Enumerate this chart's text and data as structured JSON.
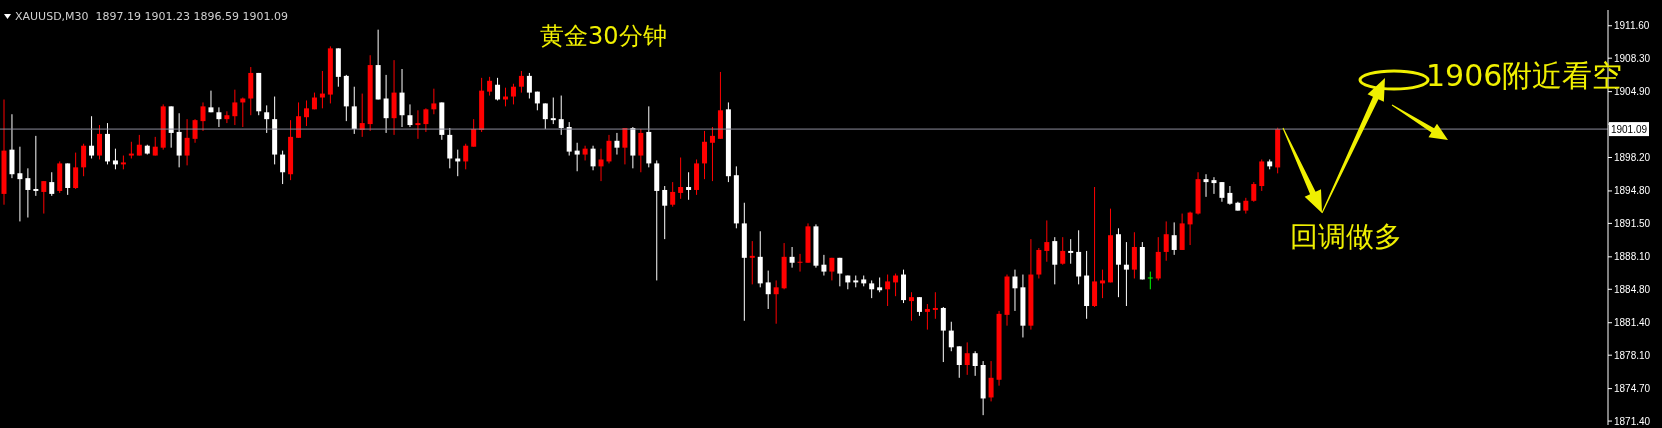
{
  "chart_data": {
    "type": "candlestick",
    "title": "黄金30分钟",
    "subtitle": "XAUUSD,M30  1897.19 1901.23 1896.59 1901.09",
    "annotations": [
      "1906附近看空",
      "回调做多"
    ],
    "categories": [
      null,
      null,
      null,
      null,
      null,
      null,
      null,
      null,
      null,
      null,
      null,
      null,
      null,
      null,
      null,
      null,
      null,
      null,
      null,
      null,
      null,
      null,
      null,
      null,
      null,
      null,
      null,
      null,
      null,
      null,
      null,
      null,
      null,
      null,
      null,
      null,
      null,
      null,
      null,
      null,
      null,
      null,
      null,
      null,
      null,
      null,
      null,
      null,
      null,
      null,
      null,
      null,
      null,
      null,
      null,
      null,
      null,
      null,
      null,
      null,
      null,
      null,
      null,
      null,
      null,
      null,
      null,
      null,
      null,
      null,
      null,
      null,
      null,
      null,
      null,
      null,
      null,
      null,
      null,
      null,
      null,
      null,
      null,
      null,
      null,
      null,
      null,
      null,
      null,
      null,
      null,
      null,
      null,
      null,
      null,
      null,
      null,
      null,
      null,
      null,
      null,
      null,
      null,
      null,
      null,
      null,
      null,
      null,
      null,
      null,
      null,
      null,
      null,
      null,
      null,
      null,
      null,
      null,
      null,
      null,
      null,
      null,
      null,
      null,
      null,
      null,
      null,
      null,
      null,
      null,
      null,
      null,
      null,
      null,
      null,
      null,
      null,
      null,
      null,
      null,
      null,
      null,
      null,
      null,
      null,
      null,
      null,
      null,
      null,
      null,
      null,
      null,
      null,
      null,
      null,
      null,
      null,
      null,
      null,
      null,
      null,
      null,
      null,
      null,
      null,
      null,
      null,
      null,
      null,
      null,
      null,
      null,
      null,
      null,
      null,
      null,
      null,
      null,
      null,
      null,
      null,
      null,
      null,
      null,
      null,
      null,
      null,
      null,
      null,
      null,
      null,
      null,
      null,
      null,
      null,
      null,
      null,
      null,
      null,
      null,
      null,
      null
    ],
    "ohlc": [
      [
        1894.5,
        1904.1,
        1893.4,
        1898.9
      ],
      [
        1899.0,
        1902.6,
        1896.1,
        1896.5
      ],
      [
        1896.6,
        1899.3,
        1891.7,
        1896.0
      ],
      [
        1896.1,
        1897.1,
        1892.1,
        1894.9
      ],
      [
        1895.0,
        1900.4,
        1894.3,
        1894.8
      ],
      [
        1894.7,
        1895.8,
        1892.5,
        1895.8
      ],
      [
        1895.7,
        1896.7,
        1894.3,
        1894.5
      ],
      [
        1894.8,
        1897.8,
        1894.6,
        1897.6
      ],
      [
        1897.6,
        1897.6,
        1894.4,
        1895.1
      ],
      [
        1895.1,
        1898.7,
        1895.0,
        1897.2
      ],
      [
        1897.2,
        1899.6,
        1896.3,
        1899.4
      ],
      [
        1899.4,
        1902.4,
        1898.1,
        1898.4
      ],
      [
        1898.4,
        1901.5,
        1898.0,
        1900.6
      ],
      [
        1900.6,
        1901.7,
        1897.5,
        1897.8
      ],
      [
        1897.9,
        1899.1,
        1897.0,
        1897.5
      ],
      [
        1897.5,
        1898.4,
        1897.0,
        1897.7
      ],
      [
        1898.4,
        1899.8,
        1898.1,
        1898.6
      ],
      [
        1898.4,
        1900.5,
        1898.4,
        1899.5
      ],
      [
        1899.4,
        1899.5,
        1898.5,
        1898.6
      ],
      [
        1898.4,
        1900.3,
        1898.4,
        1899.3
      ],
      [
        1899.2,
        1903.6,
        1899.0,
        1903.4
      ],
      [
        1903.4,
        1903.4,
        1899.2,
        1900.7
      ],
      [
        1900.8,
        1902.7,
        1897.2,
        1898.4
      ],
      [
        1898.4,
        1902.1,
        1897.4,
        1900.2
      ],
      [
        1900.1,
        1902.1,
        1899.7,
        1902.0
      ],
      [
        1901.9,
        1903.8,
        1900.9,
        1903.4
      ],
      [
        1903.3,
        1905.0,
        1902.8,
        1902.8
      ],
      [
        1902.8,
        1903.3,
        1901.3,
        1902.1
      ],
      [
        1902.1,
        1902.9,
        1901.7,
        1902.5
      ],
      [
        1902.4,
        1905.1,
        1901.5,
        1903.8
      ],
      [
        1903.8,
        1904.3,
        1901.3,
        1904.2
      ],
      [
        1904.2,
        1907.4,
        1902.5,
        1906.8
      ],
      [
        1906.8,
        1906.8,
        1902.5,
        1902.9
      ],
      [
        1902.8,
        1903.5,
        1900.7,
        1902.1
      ],
      [
        1902.1,
        1904.4,
        1897.5,
        1898.5
      ],
      [
        1898.5,
        1898.9,
        1895.5,
        1896.7
      ],
      [
        1896.5,
        1902.0,
        1895.9,
        1900.3
      ],
      [
        1900.2,
        1903.8,
        1900.2,
        1902.4
      ],
      [
        1902.3,
        1904.0,
        1901.4,
        1903.2
      ],
      [
        1903.1,
        1904.8,
        1903.1,
        1904.3
      ],
      [
        1904.3,
        1907.0,
        1903.2,
        1904.7
      ],
      [
        1904.6,
        1909.5,
        1903.7,
        1909.3
      ],
      [
        1909.3,
        1909.3,
        1905.4,
        1906.4
      ],
      [
        1906.5,
        1906.6,
        1901.9,
        1903.4
      ],
      [
        1903.4,
        1905.4,
        1900.6,
        1901.1
      ],
      [
        1901.0,
        1904.7,
        1900.3,
        1901.7
      ],
      [
        1901.6,
        1908.6,
        1900.9,
        1907.6
      ],
      [
        1907.6,
        1911.2,
        1904.1,
        1904.1
      ],
      [
        1904.2,
        1906.6,
        1900.7,
        1902.2
      ],
      [
        1902.2,
        1908.1,
        1900.5,
        1904.8
      ],
      [
        1904.8,
        1907.2,
        1901.3,
        1902.5
      ],
      [
        1902.5,
        1903.6,
        1901.3,
        1901.5
      ],
      [
        1901.5,
        1903.0,
        1900.1,
        1901.7
      ],
      [
        1901.6,
        1903.2,
        1900.8,
        1903.1
      ],
      [
        1903.1,
        1905.2,
        1902.6,
        1903.7
      ],
      [
        1903.8,
        1903.8,
        1900.0,
        1900.5
      ],
      [
        1900.5,
        1901.2,
        1897.1,
        1898.1
      ],
      [
        1898.1,
        1899.0,
        1896.3,
        1897.8
      ],
      [
        1897.8,
        1899.6,
        1897.0,
        1899.4
      ],
      [
        1899.3,
        1902.1,
        1899.3,
        1901.1
      ],
      [
        1901.0,
        1906.3,
        1900.8,
        1905.0
      ],
      [
        1904.9,
        1906.4,
        1904.5,
        1906.0
      ],
      [
        1905.6,
        1906.3,
        1904.0,
        1904.1
      ],
      [
        1904.1,
        1905.3,
        1903.4,
        1904.4
      ],
      [
        1904.4,
        1905.7,
        1903.6,
        1905.4
      ],
      [
        1905.4,
        1907.0,
        1904.8,
        1906.5
      ],
      [
        1906.5,
        1906.8,
        1904.2,
        1904.8
      ],
      [
        1904.9,
        1904.9,
        1903.0,
        1903.7
      ],
      [
        1903.7,
        1903.7,
        1901.1,
        1902.1
      ],
      [
        1902.2,
        1904.3,
        1901.6,
        1902.0
      ],
      [
        1902.1,
        1904.5,
        1900.5,
        1901.2
      ],
      [
        1901.3,
        1901.8,
        1898.4,
        1898.8
      ],
      [
        1898.9,
        1899.7,
        1896.8,
        1898.5
      ],
      [
        1898.5,
        1899.4,
        1897.9,
        1899.1
      ],
      [
        1899.1,
        1899.4,
        1896.9,
        1897.3
      ],
      [
        1897.3,
        1899.1,
        1895.8,
        1898.0
      ],
      [
        1897.8,
        1900.5,
        1897.6,
        1899.9
      ],
      [
        1899.9,
        1900.7,
        1898.5,
        1899.2
      ],
      [
        1899.2,
        1901.2,
        1897.5,
        1901.2
      ],
      [
        1901.2,
        1901.3,
        1897.1,
        1898.4
      ],
      [
        1898.4,
        1901.1,
        1896.7,
        1900.7
      ],
      [
        1900.8,
        1903.4,
        1897.2,
        1897.6
      ],
      [
        1897.6,
        1897.9,
        1885.7,
        1894.8
      ],
      [
        1894.9,
        1895.3,
        1889.9,
        1893.3
      ],
      [
        1893.4,
        1895.7,
        1893.2,
        1894.7
      ],
      [
        1894.6,
        1898.2,
        1894.0,
        1895.2
      ],
      [
        1895.2,
        1896.7,
        1893.9,
        1894.9
      ],
      [
        1894.9,
        1898.0,
        1894.4,
        1897.6
      ],
      [
        1897.6,
        1900.9,
        1896.0,
        1899.8
      ],
      [
        1899.7,
        1901.3,
        1895.8,
        1900.4
      ],
      [
        1900.1,
        1906.9,
        1900.1,
        1903.0
      ],
      [
        1903.1,
        1903.8,
        1895.7,
        1896.3
      ],
      [
        1896.4,
        1897.3,
        1891.0,
        1891.5
      ],
      [
        1891.5,
        1893.6,
        1881.6,
        1888.0
      ],
      [
        1888.0,
        1889.7,
        1885.3,
        1888.2
      ],
      [
        1888.1,
        1890.7,
        1885.0,
        1885.4
      ],
      [
        1885.5,
        1886.7,
        1882.8,
        1884.3
      ],
      [
        1884.3,
        1885.7,
        1881.3,
        1885.0
      ],
      [
        1884.9,
        1889.5,
        1884.8,
        1888.1
      ],
      [
        1888.1,
        1889.1,
        1887.0,
        1887.5
      ],
      [
        1887.5,
        1888.4,
        1886.6,
        1887.6
      ],
      [
        1887.5,
        1891.5,
        1887.5,
        1891.2
      ],
      [
        1891.2,
        1891.4,
        1887.0,
        1887.2
      ],
      [
        1887.3,
        1888.3,
        1886.2,
        1886.6
      ],
      [
        1886.6,
        1888.0,
        1885.7,
        1888.0
      ],
      [
        1888.0,
        1888.0,
        1885.1,
        1886.4
      ],
      [
        1886.2,
        1886.2,
        1884.8,
        1885.5
      ],
      [
        1885.7,
        1886.2,
        1885.0,
        1885.5
      ],
      [
        1885.8,
        1886.2,
        1885.1,
        1885.4
      ],
      [
        1885.4,
        1885.7,
        1883.9,
        1884.8
      ],
      [
        1885.0,
        1886.0,
        1884.5,
        1884.7
      ],
      [
        1884.8,
        1886.3,
        1883.1,
        1885.6
      ],
      [
        1885.5,
        1886.4,
        1884.1,
        1886.2
      ],
      [
        1886.3,
        1886.8,
        1883.4,
        1883.7
      ],
      [
        1883.6,
        1884.5,
        1881.6,
        1884.0
      ],
      [
        1884.0,
        1884.0,
        1882.1,
        1882.5
      ],
      [
        1882.5,
        1883.3,
        1880.7,
        1882.8
      ],
      [
        1882.7,
        1884.5,
        1881.8,
        1882.9
      ],
      [
        1882.9,
        1883.0,
        1877.4,
        1880.6
      ],
      [
        1880.6,
        1881.5,
        1878.5,
        1878.9
      ],
      [
        1879.0,
        1879.0,
        1875.8,
        1877.1
      ],
      [
        1877.1,
        1879.4,
        1876.1,
        1878.3
      ],
      [
        1878.3,
        1878.5,
        1876.0,
        1877.0
      ],
      [
        1877.1,
        1877.5,
        1872.0,
        1873.7
      ],
      [
        1873.8,
        1877.5,
        1873.4,
        1875.8
      ],
      [
        1875.6,
        1882.6,
        1875.0,
        1882.3
      ],
      [
        1882.2,
        1886.3,
        1881.1,
        1886.1
      ],
      [
        1886.1,
        1886.8,
        1882.6,
        1884.9
      ],
      [
        1885.0,
        1886.3,
        1879.9,
        1881.1
      ],
      [
        1881.1,
        1889.9,
        1880.7,
        1886.3
      ],
      [
        1886.3,
        1889.0,
        1885.9,
        1888.8
      ],
      [
        1888.7,
        1891.8,
        1887.6,
        1889.6
      ],
      [
        1889.7,
        1890.1,
        1885.3,
        1887.3
      ],
      [
        1887.4,
        1890.1,
        1887.3,
        1888.7
      ],
      [
        1888.7,
        1889.9,
        1887.4,
        1888.5
      ],
      [
        1888.6,
        1890.8,
        1885.3,
        1886.1
      ],
      [
        1886.2,
        1888.7,
        1881.8,
        1883.1
      ],
      [
        1883.1,
        1895.2,
        1883.0,
        1885.6
      ],
      [
        1885.4,
        1886.8,
        1883.9,
        1885.7
      ],
      [
        1885.5,
        1893.0,
        1885.5,
        1890.3
      ],
      [
        1890.4,
        1891.0,
        1884.0,
        1887.3
      ],
      [
        1887.3,
        1889.6,
        1883.1,
        1886.8
      ],
      [
        1886.8,
        1890.6,
        1885.9,
        1889.1
      ],
      [
        1889.1,
        1889.6,
        1885.8,
        1885.8
      ],
      [
        1886.0,
        1886.6,
        1884.8,
        1886.0
      ],
      [
        1885.9,
        1890.1,
        1885.7,
        1888.6
      ],
      [
        1888.6,
        1891.7,
        1887.7,
        1890.4
      ],
      [
        1890.3,
        1891.6,
        1888.3,
        1888.8
      ],
      [
        1888.8,
        1892.5,
        1888.8,
        1891.5
      ],
      [
        1891.4,
        1892.7,
        1889.3,
        1892.6
      ],
      [
        1892.5,
        1896.7,
        1892.4,
        1896.0
      ],
      [
        1896.0,
        1896.5,
        1894.2,
        1895.7
      ],
      [
        1895.9,
        1896.2,
        1894.5,
        1895.6
      ],
      [
        1895.7,
        1895.7,
        1893.7,
        1894.1
      ],
      [
        1894.6,
        1895.3,
        1893.4,
        1893.5
      ],
      [
        1893.6,
        1893.7,
        1892.8,
        1892.8
      ],
      [
        1892.8,
        1894.1,
        1892.5,
        1893.8
      ],
      [
        1893.8,
        1895.7,
        1893.7,
        1895.5
      ],
      [
        1895.3,
        1898.0,
        1894.8,
        1897.8
      ],
      [
        1897.8,
        1898.0,
        1897.0,
        1897.3
      ],
      [
        1897.19,
        1901.23,
        1896.59,
        1901.09
      ],
      null,
      null,
      null,
      null,
      null,
      null,
      null,
      null,
      null,
      null,
      null,
      null,
      null,
      null,
      null,
      null,
      null,
      null,
      null,
      null,
      null,
      null,
      null,
      null,
      null,
      null,
      null,
      null,
      null,
      null,
      null,
      null,
      null,
      null,
      null,
      null,
      null,
      null,
      null,
      null,
      null
    ],
    "colors": [
      "#ff0000",
      "#ffffff",
      "#ffffff",
      "#ffffff",
      "#ffffff",
      "#ff0000",
      "#ffffff",
      "#ff0000",
      "#ffffff",
      "#ff0000",
      "#ff0000",
      "#ffffff",
      "#ff0000",
      "#ffffff",
      "#ffffff",
      "#ff0000",
      "#ff0000",
      "#ff0000",
      "#ffffff",
      "#ff0000",
      "#ff0000",
      "#ffffff",
      "#ffffff",
      "#ff0000",
      "#ff0000",
      "#ff0000",
      "#ffffff",
      "#ffffff",
      "#ff0000",
      "#ff0000",
      "#ff0000",
      "#ff0000",
      "#ffffff",
      "#ffffff",
      "#ffffff",
      "#ffffff",
      "#ff0000",
      "#ff0000",
      "#ff0000",
      "#ff0000",
      "#ff0000",
      "#ff0000",
      "#ffffff",
      "#ffffff",
      "#ffffff",
      "#ff0000",
      "#ff0000",
      "#ffffff",
      "#ffffff",
      "#ff0000",
      "#ffffff",
      "#ffffff",
      "#ff0000",
      "#ff0000",
      "#ff0000",
      "#ffffff",
      "#ffffff",
      "#ffffff",
      "#ff0000",
      "#ff0000",
      "#ff0000",
      "#ff0000",
      "#ffffff",
      "#ff0000",
      "#ff0000",
      "#ff0000",
      "#ffffff",
      "#ffffff",
      "#ffffff",
      "#ffffff",
      "#ffffff",
      "#ffffff",
      "#ffffff",
      "#ff0000",
      "#ffffff",
      "#ff0000",
      "#ff0000",
      "#ffffff",
      "#ff0000",
      "#ffffff",
      "#ff0000",
      "#ffffff",
      "#ffffff",
      "#ffffff",
      "#ff0000",
      "#ff0000",
      "#ffffff",
      "#ff0000",
      "#ff0000",
      "#ff0000",
      "#ff0000",
      "#ffffff",
      "#ffffff",
      "#ffffff",
      "#ff0000",
      "#ffffff",
      "#ffffff",
      "#ff0000",
      "#ff0000",
      "#ffffff",
      "#ff0000",
      "#ff0000",
      "#ffffff",
      "#ffffff",
      "#ff0000",
      "#ffffff",
      "#ffffff",
      "#ffffff",
      "#ffffff",
      "#ffffff",
      "#ffffff",
      "#ff0000",
      "#ff0000",
      "#ffffff",
      "#ff0000",
      "#ffffff",
      "#ff0000",
      "#ff0000",
      "#ffffff",
      "#ffffff",
      "#ffffff",
      "#ff0000",
      "#ffffff",
      "#ffffff",
      "#ff0000",
      "#ff0000",
      "#ff0000",
      "#ffffff",
      "#ffffff",
      "#ff0000",
      "#ff0000",
      "#ff0000",
      "#ffffff",
      "#ff0000",
      "#ffffff",
      "#ffffff",
      "#ffffff",
      "#ff0000",
      "#ff0000",
      "#ff0000",
      "#ffffff",
      "#ffffff",
      "#ff0000",
      "#ffffff",
      "#00ff00",
      "#ff0000",
      "#ff0000",
      "#ffffff",
      "#ff0000",
      "#ff0000",
      "#ff0000",
      "#ffffff",
      "#ffffff",
      "#ffffff",
      "#ffffff",
      "#ffffff",
      "#ff0000",
      "#ff0000",
      "#ff0000",
      "#ffffff",
      "#ff0000",
      null,
      null,
      null,
      null,
      null,
      null,
      null,
      null,
      null,
      null,
      null,
      null,
      null,
      null,
      null,
      null,
      null,
      null,
      null,
      null,
      null,
      null,
      null,
      null,
      null,
      null,
      null,
      null,
      null,
      null,
      null,
      null,
      null,
      null,
      null,
      null,
      null,
      null,
      null,
      null,
      null
    ],
    "ylim": [
      1871.0,
      1913.2
    ],
    "yticks": [
      {
        "value": 1911.6,
        "label": "1911.60"
      },
      {
        "value": 1908.3,
        "label": "1908.30"
      },
      {
        "value": 1904.9,
        "label": "1904.90"
      },
      {
        "value": 1901.6,
        "label": null
      },
      {
        "value": 1898.2,
        "label": "1898.20"
      },
      {
        "value": 1894.8,
        "label": "1894.80"
      },
      {
        "value": 1891.5,
        "label": "1891.50"
      },
      {
        "value": 1888.1,
        "label": "1888.10"
      },
      {
        "value": 1884.8,
        "label": "1884.80"
      },
      {
        "value": 1881.4,
        "label": "1881.40"
      },
      {
        "value": 1878.1,
        "label": "1878.10"
      },
      {
        "value": 1874.7,
        "label": "1874.70"
      },
      {
        "value": 1871.4,
        "label": "1871.40"
      }
    ],
    "ref_lines": [
      {
        "axis": "y",
        "value": 1901.09,
        "label": "1901.09",
        "color": "#8c8c9c"
      }
    ]
  }
}
